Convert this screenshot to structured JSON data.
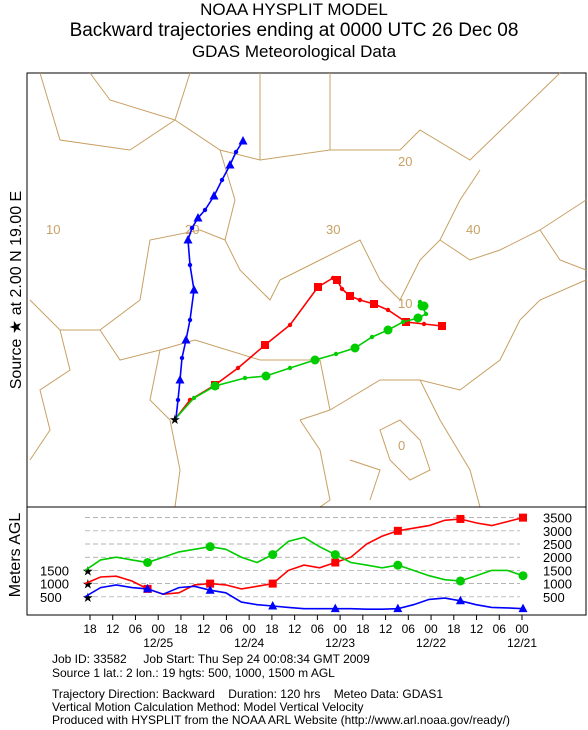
{
  "titles": {
    "line1": "NOAA HYSPLIT MODEL",
    "line2": "Backward trajectories ending at 0000 UTC 26 Dec 08",
    "line3": "GDAS Meteorological Data"
  },
  "source_label": "Source ★ at   2.00 N   19.00 E",
  "altitude_label": "Meters AGL",
  "map": {
    "lat_labels": [
      "20",
      "10",
      "0"
    ],
    "lon_labels": [
      "10",
      "20",
      "30",
      "40"
    ],
    "border_color": "#c8a064"
  },
  "chart_data": {
    "type": "line",
    "title": "",
    "ylabel": "Meters AGL",
    "x_ticks": [
      "18",
      "12",
      "06",
      "00",
      "18",
      "12",
      "06",
      "00",
      "18",
      "12",
      "06",
      "00",
      "18",
      "12",
      "06",
      "00",
      "18",
      "12",
      "06",
      "00"
    ],
    "date_labels": [
      "12/25",
      "12/24",
      "12/23",
      "12/22",
      "12/21"
    ],
    "y_right_ticks": [
      "3500",
      "3000",
      "2500",
      "2000",
      "1500",
      "1000",
      "500"
    ],
    "y_left_ticks": [
      "1500",
      "1000",
      "500"
    ],
    "series": [
      {
        "color": "#ff0000",
        "marker": "square",
        "start_height": 1000,
        "values": [
          1000,
          1250,
          1280,
          1100,
          800,
          600,
          650,
          950,
          1000,
          950,
          800,
          900,
          1000,
          1500,
          1700,
          1600,
          1800,
          2000,
          2500,
          2800,
          3000,
          3100,
          3200,
          3400,
          3450,
          3300,
          3200,
          3350,
          3500
        ]
      },
      {
        "color": "#00cc00",
        "marker": "circle",
        "start_height": 1500,
        "values": [
          1500,
          1900,
          2000,
          1900,
          1800,
          2000,
          2200,
          2300,
          2400,
          2300,
          2000,
          1800,
          2100,
          2600,
          2750,
          2400,
          2100,
          1800,
          1700,
          1600,
          1700,
          1500,
          1300,
          1150,
          1100,
          1300,
          1500,
          1500,
          1300
        ]
      },
      {
        "color": "#0000ff",
        "marker": "triangle",
        "start_height": 500,
        "values": [
          500,
          850,
          950,
          850,
          800,
          600,
          850,
          900,
          750,
          650,
          300,
          200,
          150,
          100,
          50,
          50,
          50,
          50,
          30,
          30,
          50,
          200,
          400,
          450,
          350,
          200,
          100,
          80,
          50
        ]
      }
    ]
  },
  "footer": {
    "line1_job": "Job ID: 33582",
    "line1_start": "Job Start: Thu Sep 24 00:08:34 GMT 2009",
    "line2": "Source 1 lat.: 2  lon.: 19  hgts: 500, 1000, 1500 m AGL",
    "line3_dir": "Trajectory Direction: Backward",
    "line3_dur": "Duration: 120 hrs",
    "line3_met": "Meteo Data: GDAS1",
    "line4": "Vertical Motion Calculation Method: Model Vertical Velocity",
    "line5": "Produced with HYSPLIT from the NOAA ARL Website (http://www.arl.noaa.gov/ready/)"
  }
}
